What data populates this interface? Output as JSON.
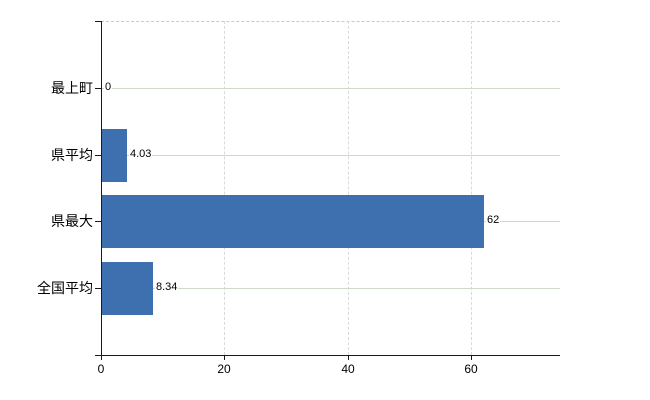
{
  "chart_data": {
    "type": "bar",
    "orientation": "horizontal",
    "title": "",
    "categories": [
      "最上町",
      "県平均",
      "県最大",
      "全国平均"
    ],
    "values": [
      0,
      4.03,
      62,
      8.34
    ],
    "value_labels": [
      "0",
      "4.03",
      "62",
      "8.34"
    ],
    "xticks": [
      0,
      20,
      40,
      60
    ],
    "xtick_labels": [
      "0",
      "20",
      "40",
      "60"
    ],
    "xlim": [
      0,
      74.4
    ],
    "grid": "on",
    "legend": "none",
    "colors": {
      "bar": "#3e6fae",
      "axis": "#1a1a1a",
      "h_grid": "#cfd9cb",
      "v_grid": "#d9d9d9",
      "top_border": "#c9c9c9",
      "text": "#000000",
      "background": "#ffffff"
    }
  }
}
